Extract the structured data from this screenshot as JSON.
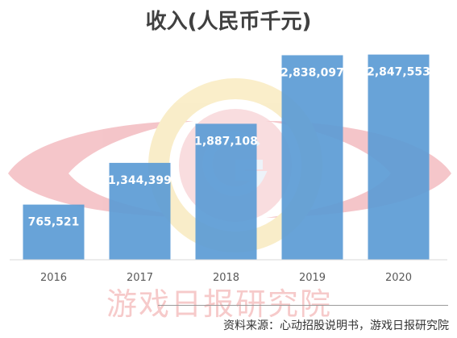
{
  "chart_data": {
    "type": "bar",
    "title": "收入(人民币千元)",
    "categories": [
      "2016",
      "2017",
      "2018",
      "2019",
      "2020"
    ],
    "values": [
      765521,
      1344399,
      1887108,
      2838097,
      2847553
    ],
    "value_labels": [
      "765,521",
      "1,344,399",
      "1,887,108",
      "2,838,097",
      "2,847,553"
    ],
    "xlabel": "",
    "ylabel": "",
    "ylim": [
      0,
      3000000
    ],
    "grid": false,
    "legend": "none",
    "bar_color": "#5b9bd5"
  },
  "watermark": {
    "text": "游戏日报研究院"
  },
  "footer": {
    "source": "资料来源：心动招股说明书，游戏日报研究院"
  }
}
